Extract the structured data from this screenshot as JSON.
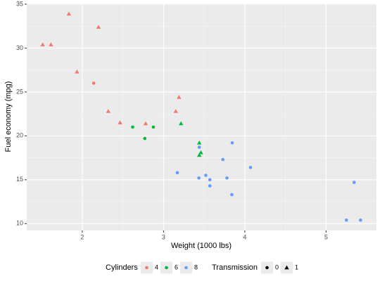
{
  "chart_data": {
    "type": "scatter",
    "x_label": "Weight (1000 lbs)",
    "y_label": "Fuel economy (mpg)",
    "xlim": [
      1.317,
      5.62
    ],
    "ylim": [
      9.225,
      35.075
    ],
    "xticks": [
      2,
      3,
      4,
      5
    ],
    "yticks": [
      10,
      15,
      20,
      25,
      30,
      35
    ],
    "grid": true,
    "legend": "bottom",
    "color_legend_title": "Cylinders",
    "shape_legend": {
      "title": "Transmission",
      "labels": [
        "0",
        "1"
      ],
      "shapes": [
        "circle",
        "triangle"
      ]
    },
    "series": [
      {
        "name": "4",
        "color": "#F8766D",
        "x": [
          2.32,
          3.19,
          3.15,
          2.2,
          1.615,
          1.835,
          2.465,
          1.935,
          2.14,
          1.513,
          2.78
        ],
        "values": [
          22.8,
          24.4,
          22.8,
          32.4,
          30.4,
          33.9,
          21.5,
          27.3,
          26,
          30.4,
          21.4
        ],
        "shape_index": [
          1,
          1,
          1,
          1,
          1,
          1,
          1,
          1,
          0,
          1,
          1
        ]
      },
      {
        "name": "6",
        "color": "#00BA38",
        "x": [
          2.62,
          2.875,
          3.215,
          3.46,
          3.44,
          3.44,
          2.77
        ],
        "values": [
          21,
          21,
          21.4,
          18.1,
          19.2,
          17.8,
          19.7
        ],
        "shape_index": [
          0,
          0,
          1,
          1,
          1,
          1,
          0
        ]
      },
      {
        "name": "8",
        "color": "#619CFF",
        "x": [
          3.44,
          3.57,
          4.07,
          3.73,
          3.78,
          5.25,
          5.424,
          5.345,
          3.52,
          3.435,
          3.84,
          3.845,
          3.17,
          3.57
        ],
        "values": [
          18.7,
          14.3,
          16.4,
          17.3,
          15.2,
          10.4,
          10.4,
          14.7,
          15.5,
          15.2,
          13.3,
          19.2,
          15.8,
          15
        ],
        "shape_index": [
          0,
          0,
          0,
          0,
          0,
          0,
          0,
          0,
          0,
          0,
          0,
          0,
          0,
          0
        ]
      }
    ]
  }
}
